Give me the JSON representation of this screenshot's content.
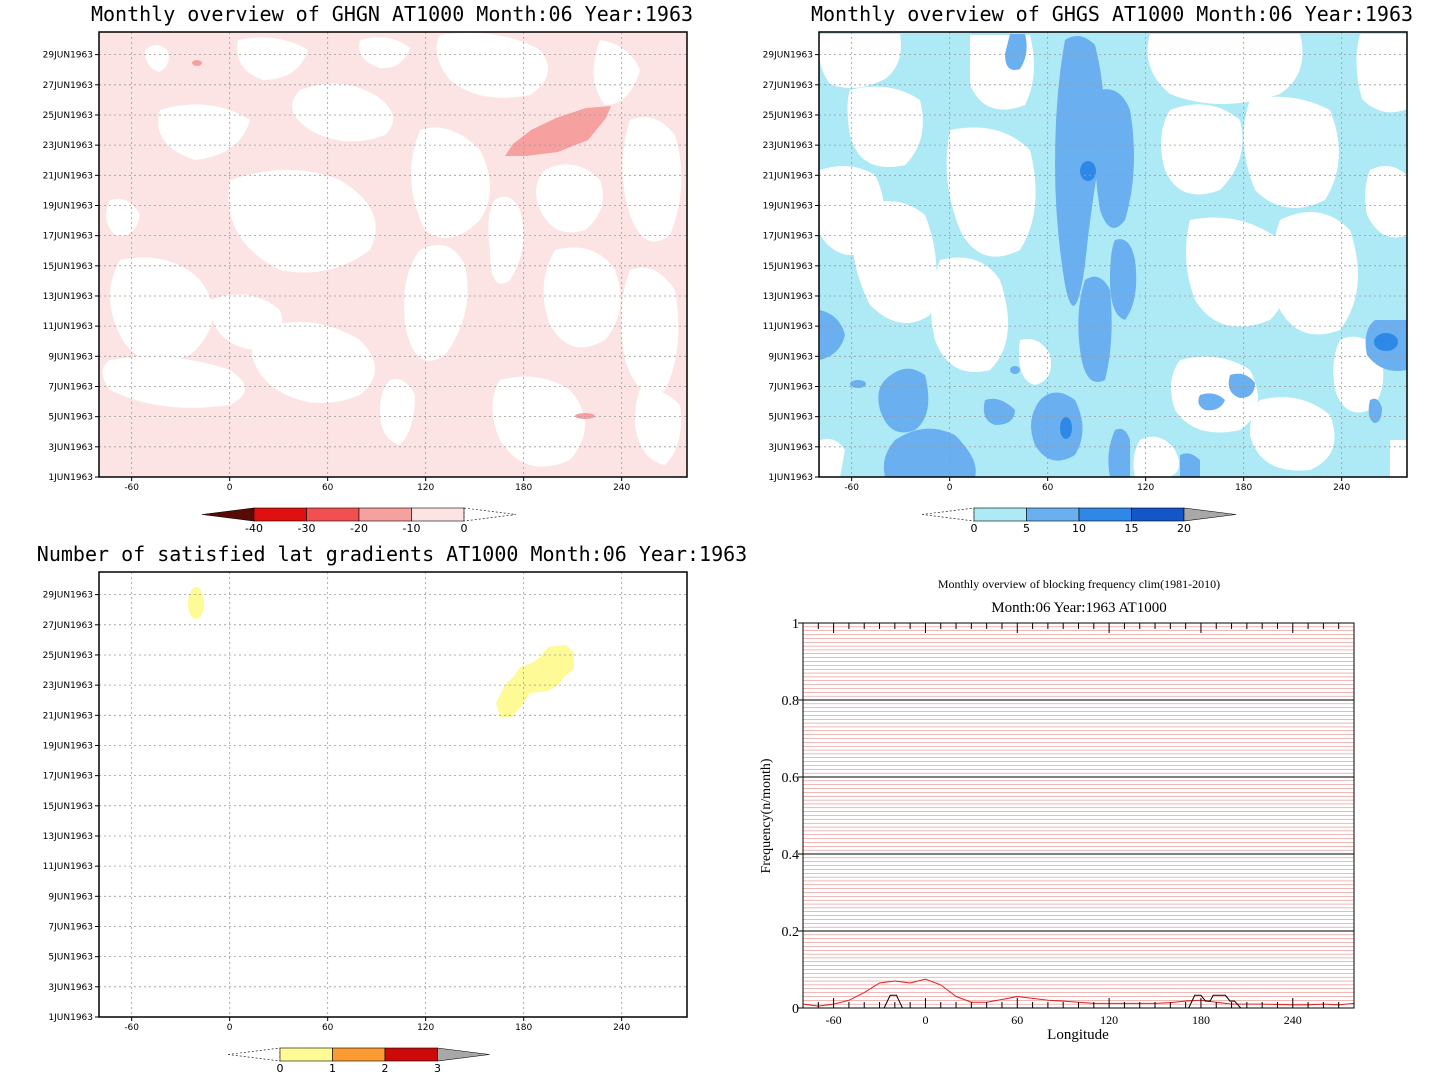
{
  "chart_data": [
    {
      "type": "heatmap",
      "title": "Monthly overview of GHGN AT1000 Month:06 Year:1963",
      "x_ticks": [
        "-60",
        "0",
        "60",
        "120",
        "180",
        "240"
      ],
      "y_ticks": [
        "1JUN1963",
        "3JUN1963",
        "5JUN1963",
        "7JUN1963",
        "9JUN1963",
        "11JUN1963",
        "13JUN1963",
        "15JUN1963",
        "17JUN1963",
        "19JUN1963",
        "21JUN1963",
        "23JUN1963",
        "25JUN1963",
        "27JUN1963",
        "29JUN1963"
      ],
      "xlim": [
        -80,
        280
      ],
      "colorbar": {
        "labels": [
          "-40",
          "-30",
          "-20",
          "-10",
          "0"
        ],
        "colors": [
          "#5a0a05",
          "#e01010",
          "#f25050",
          "#f7a0a0",
          "#fde4e4"
        ]
      },
      "background_color": "#fde4e4",
      "features": [
        {
          "level": -10,
          "lon_range": [
            168,
            233
          ],
          "date_range": [
            22.5,
            25.1
          ],
          "note": "pink patch"
        },
        {
          "level": -10,
          "lon_range": [
            212,
            224
          ],
          "date_range": [
            4.9,
            5.1
          ]
        },
        {
          "level": -10,
          "lon_range": [
            -22,
            -16
          ],
          "date_range": [
            28.7,
            29.0
          ]
        }
      ]
    },
    {
      "type": "heatmap",
      "title": "Monthly overview of GHGS AT1000 Month:06 Year:1963",
      "x_ticks": [
        "-60",
        "0",
        "60",
        "120",
        "180",
        "240"
      ],
      "y_ticks": [
        "1JUN1963",
        "3JUN1963",
        "5JUN1963",
        "7JUN1963",
        "9JUN1963",
        "11JUN1963",
        "13JUN1963",
        "15JUN1963",
        "17JUN1963",
        "19JUN1963",
        "21JUN1963",
        "23JUN1963",
        "25JUN1963",
        "27JUN1963",
        "29JUN1963"
      ],
      "xlim": [
        -80,
        280
      ],
      "colorbar": {
        "labels": [
          "0",
          "5",
          "10",
          "15",
          "20"
        ],
        "colors": [
          "#aeeaf6",
          "#6ab0f0",
          "#2d88e8",
          "#1455c8",
          "#a8a8a8"
        ]
      },
      "background_color": "#aeeaf6"
    },
    {
      "type": "heatmap",
      "title": "Number of satisfied lat gradients AT1000 Month:06 Year:1963",
      "x_ticks": [
        "-60",
        "0",
        "60",
        "120",
        "180",
        "240"
      ],
      "y_ticks": [
        "1JUN1963",
        "3JUN1963",
        "5JUN1963",
        "7JUN1963",
        "9JUN1963",
        "11JUN1963",
        "13JUN1963",
        "15JUN1963",
        "17JUN1963",
        "19JUN1963",
        "21JUN1963",
        "23JUN1963",
        "25JUN1963",
        "27JUN1963",
        "29JUN1963"
      ],
      "xlim": [
        -80,
        280
      ],
      "colorbar": {
        "labels": [
          "0",
          "1",
          "2",
          "3"
        ],
        "colors": [
          "#fefa96",
          "#fa9a30",
          "#cc0a0a",
          "#a8a8a8"
        ]
      },
      "features": [
        {
          "level": 1,
          "lon_range": [
            -25,
            -15
          ],
          "date_range": [
            27.8,
            29.8
          ]
        },
        {
          "level": 1,
          "lon_range": [
            165,
            205
          ],
          "date_range": [
            21.0,
            25.5
          ]
        }
      ]
    },
    {
      "type": "line",
      "title": "Monthly overview of blocking frequency clim(1981-2010)",
      "subtitle": "Month:06 Year:1963  AT1000",
      "xlabel": "Longitude",
      "ylabel": "Frequency(n/month)",
      "xlim": [
        -80,
        280
      ],
      "ylim": [
        0,
        1
      ],
      "x_ticks": [
        "-60",
        "0",
        "60",
        "120",
        "180",
        "240"
      ],
      "y_ticks": [
        "0",
        "0.2",
        "0.4",
        "0.6",
        "0.8",
        "1"
      ],
      "grid": true,
      "series": [
        {
          "color": "#e02020",
          "x": [
            -80,
            -70,
            -60,
            -50,
            -40,
            -30,
            -20,
            -10,
            0,
            10,
            20,
            30,
            40,
            50,
            60,
            70,
            80,
            90,
            100,
            110,
            120,
            130,
            140,
            150,
            160,
            170,
            180,
            190,
            200,
            210,
            220,
            230,
            240,
            250,
            260,
            270,
            280
          ],
          "y": [
            0.01,
            0.005,
            0.01,
            0.02,
            0.04,
            0.065,
            0.07,
            0.065,
            0.075,
            0.06,
            0.03,
            0.015,
            0.015,
            0.022,
            0.03,
            0.025,
            0.02,
            0.018,
            0.015,
            0.012,
            0.012,
            0.012,
            0.012,
            0.012,
            0.014,
            0.018,
            0.02,
            0.015,
            0.01,
            0.01,
            0.01,
            0.009,
            0.008,
            0.008,
            0.01,
            0.008,
            0.012
          ]
        },
        {
          "color": "#000000",
          "x": [
            -80,
            -30,
            -27,
            -23,
            -19,
            -15,
            170,
            172,
            176,
            180,
            183,
            186,
            188,
            192,
            196,
            199,
            202,
            206,
            210,
            280
          ],
          "y": [
            0,
            0,
            0,
            0.033,
            0.033,
            0,
            0,
            0,
            0.033,
            0.033,
            0.018,
            0.018,
            0.033,
            0.033,
            0.033,
            0.018,
            0.018,
            0,
            0,
            0
          ]
        }
      ]
    }
  ]
}
